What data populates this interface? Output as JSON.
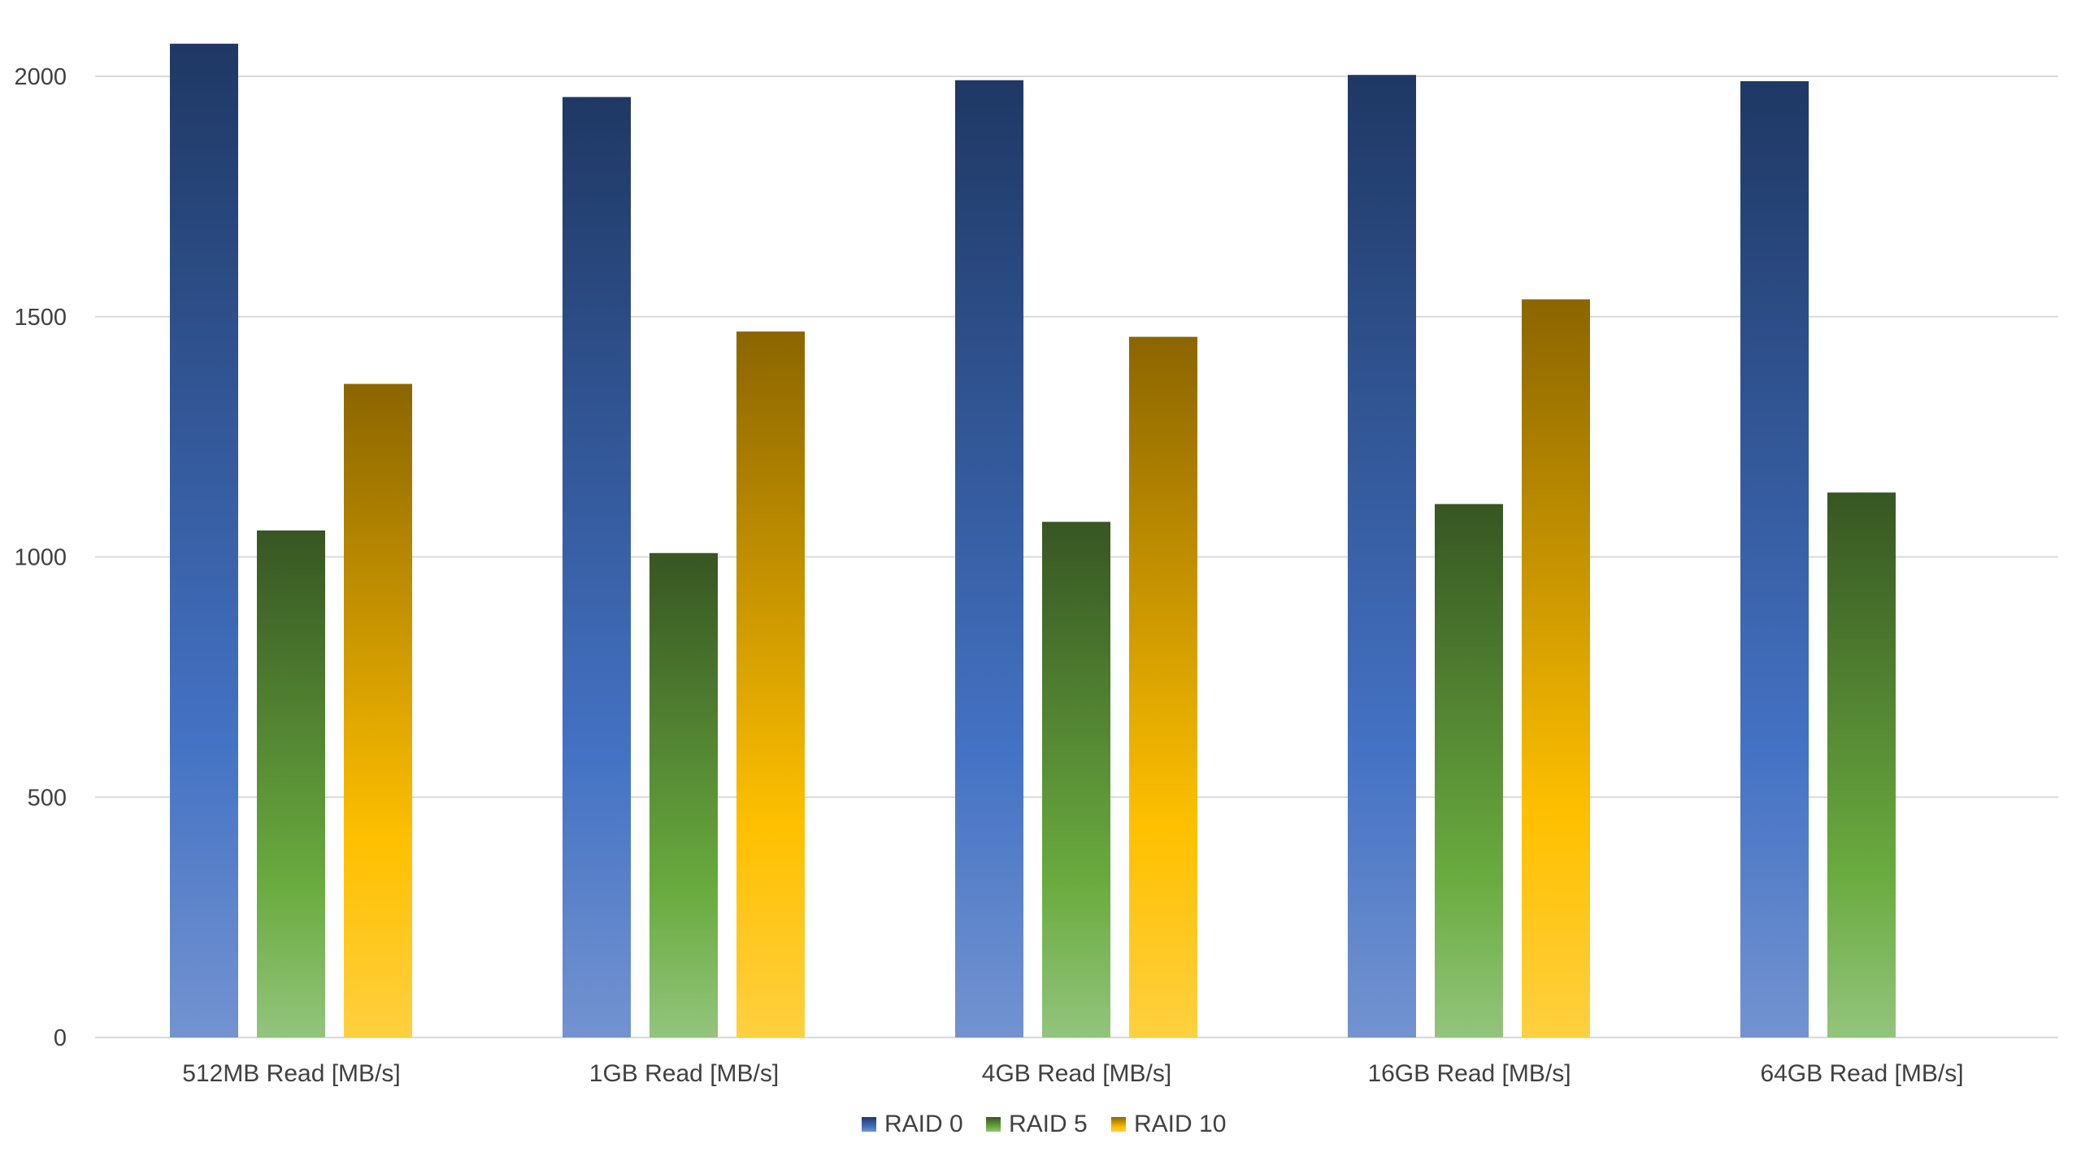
{
  "colors": {
    "raid0_top": "#1F3864",
    "raid0_mid": "#4472C4",
    "raid0_bottom": "#7393D0",
    "raid5_top": "#375623",
    "raid5_mid": "#6AAB3F",
    "raid5_bottom": "#93C47D",
    "raid10_top": "#8B6500",
    "raid10_mid": "#FFC000",
    "raid10_bottom": "#FFD040",
    "gridline": "#D9D9D9",
    "text": "#404040"
  },
  "chart_data": {
    "type": "bar",
    "title": "",
    "xlabel": "",
    "ylabel": "",
    "ylim": [
      0,
      2000
    ],
    "yticks": [
      0,
      500,
      1000,
      1500,
      2000
    ],
    "grid": true,
    "legend_position": "bottom",
    "categories": [
      "512MB Read [MB/s]",
      "1GB Read [MB/s]",
      "4GB Read [MB/s]",
      "16GB Read [MB/s]",
      "64GB Read [MB/s]"
    ],
    "series": [
      {
        "name": "RAID 0",
        "values": [
          2068,
          1957,
          1992,
          2003,
          1990
        ]
      },
      {
        "name": "RAID 5",
        "values": [
          1055,
          1008,
          1073,
          1110,
          1134
        ]
      },
      {
        "name": "RAID 10",
        "values": [
          1360,
          1469,
          1458,
          1536,
          null
        ]
      }
    ]
  }
}
